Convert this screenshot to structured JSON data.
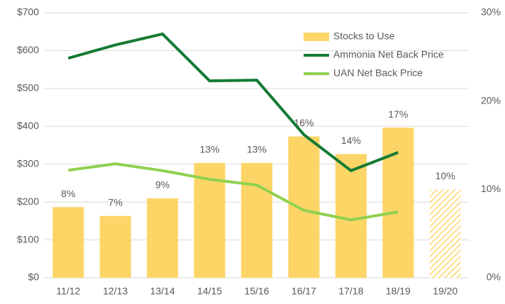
{
  "chart_data": {
    "type": "bar-line",
    "categories": [
      "11/12",
      "12/13",
      "13/14",
      "14/15",
      "15/16",
      "16/17",
      "17/18",
      "18/19",
      "19/20"
    ],
    "series": [
      {
        "name": "Stocks to Use",
        "type": "bar",
        "axis": "y2",
        "color": "#fdd567",
        "values": [
          8,
          7,
          9,
          13,
          13,
          16,
          14,
          17,
          10
        ],
        "value_labels": [
          "8%",
          "7%",
          "9%",
          "13%",
          "13%",
          "16%",
          "14%",
          "17%",
          "10%"
        ],
        "hatched": [
          false,
          false,
          false,
          false,
          false,
          false,
          false,
          false,
          true
        ]
      },
      {
        "name": "Ammonia Net Back Price",
        "type": "line",
        "color": "#147a33",
        "values": [
          580,
          615,
          644,
          520,
          522,
          378,
          283,
          331,
          null
        ]
      },
      {
        "name": "UAN Net Back Price",
        "type": "line",
        "color": "#8fd14f",
        "values": [
          284,
          301,
          283,
          260,
          245,
          178,
          153,
          174,
          null
        ]
      }
    ],
    "ylim": [
      0,
      700
    ],
    "yticks": [
      {
        "value": 0,
        "label": "$0"
      },
      {
        "value": 100,
        "label": "$100"
      },
      {
        "value": 200,
        "label": "$200"
      },
      {
        "value": 300,
        "label": "$300"
      },
      {
        "value": 400,
        "label": "$400"
      },
      {
        "value": 500,
        "label": "$500"
      },
      {
        "value": 600,
        "label": "$600"
      },
      {
        "value": 700,
        "label": "$700"
      }
    ],
    "y2lim": [
      0,
      30
    ],
    "y2ticks": [
      {
        "value": 0,
        "label": "0%"
      },
      {
        "value": 10,
        "label": "10%"
      },
      {
        "value": 20,
        "label": "20%"
      },
      {
        "value": 30,
        "label": "30%"
      }
    ],
    "grid": true,
    "legend": "upper right"
  }
}
